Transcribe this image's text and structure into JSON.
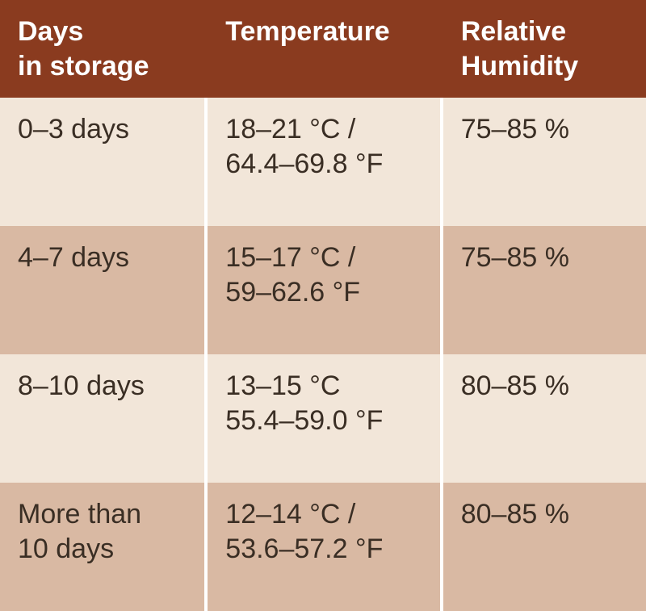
{
  "table": {
    "header_bg": "#8a3b1f",
    "header_fg": "#ffffff",
    "row_bg_light": "#f2e6d9",
    "row_bg_dark": "#d9b9a3",
    "row_fg": "#3a2e24",
    "header_fontsize": 34,
    "cell_fontsize": 34,
    "columns": [
      {
        "key": "days",
        "label": "Days\nin storage"
      },
      {
        "key": "temp",
        "label": "Temperature"
      },
      {
        "key": "rh",
        "label": "Relative\nHumidity"
      }
    ],
    "rows": [
      {
        "days": "0–3 days",
        "temp": "18–21 °C /\n64.4–69.8 °F",
        "rh": "75–85 %"
      },
      {
        "days": "4–7 days",
        "temp": "15–17 °C /\n59–62.6 °F",
        "rh": "75–85 %"
      },
      {
        "days": "8–10 days",
        "temp": "13–15 °C\n55.4–59.0 °F",
        "rh": "80–85 %"
      },
      {
        "days": "More than\n10 days",
        "temp": "12–14 °C /\n53.6–57.2 °F",
        "rh": "80–85 %"
      }
    ]
  }
}
